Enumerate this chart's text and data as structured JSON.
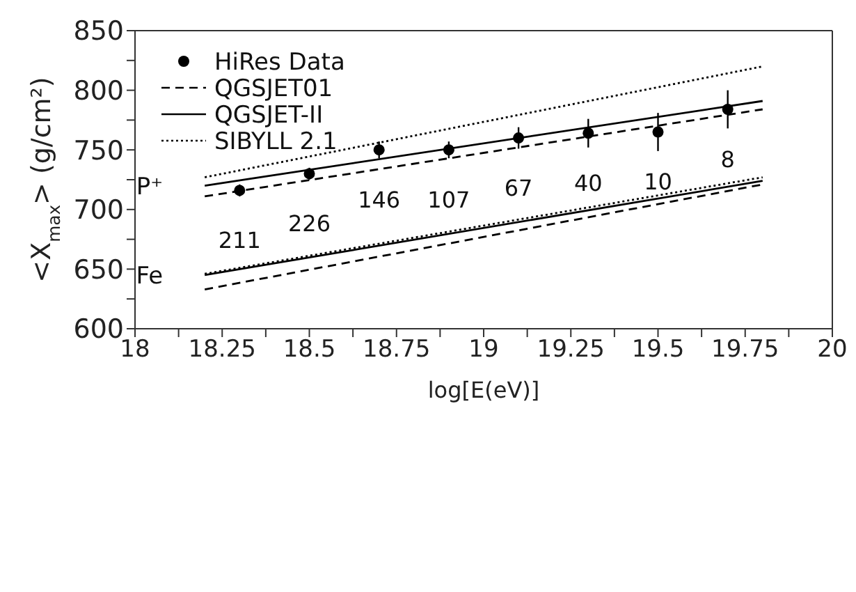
{
  "chart_data": {
    "type": "line",
    "xlabel": "log[E(eV)]",
    "ylabel": "<X$_{max}$> (g/cm²)",
    "xlim": [
      18,
      20
    ],
    "ylim": [
      600,
      850
    ],
    "xticks": [
      18,
      {
        "value": 18.125,
        "label": null
      },
      18.25,
      {
        "value": 18.375,
        "label": null
      },
      18.5,
      {
        "value": 18.625,
        "label": null
      },
      18.75,
      {
        "value": 18.875,
        "label": null
      },
      19,
      {
        "value": 19.125,
        "label": null
      },
      19.25,
      {
        "value": 19.375,
        "label": null
      },
      19.5,
      {
        "value": 19.625,
        "label": null
      },
      19.75,
      {
        "value": 19.875,
        "label": null
      },
      20
    ],
    "yticks": [
      600,
      {
        "value": 625,
        "label": null
      },
      650,
      {
        "value": 675,
        "label": null
      },
      700,
      {
        "value": 725,
        "label": null
      },
      750,
      {
        "value": 775,
        "label": null
      },
      800,
      {
        "value": 825,
        "label": null
      },
      850
    ],
    "grid": false,
    "legend": "top left",
    "series": [
      {
        "name": "HiRes Data",
        "type": "scatter",
        "marker": "circle",
        "color": "#000000",
        "x": [
          18.3,
          18.5,
          18.7,
          18.9,
          19.1,
          19.3,
          19.5,
          19.7
        ],
        "values": [
          716,
          730,
          750,
          750,
          760,
          764,
          765,
          784
        ],
        "errors": [
          5,
          5,
          7,
          7,
          9,
          12,
          16,
          16
        ]
      },
      {
        "name": "QGSJET01",
        "color": "#000000",
        "line_style": "dashed",
        "x": [
          18.2,
          19.8
        ],
        "values": [
          711,
          784
        ]
      },
      {
        "name": "QGSJET-II",
        "color": "#000000",
        "line_style": "solid",
        "x": [
          18.2,
          19.8
        ],
        "values": [
          720,
          791
        ]
      },
      {
        "name": "SIBYLL 2.1",
        "color": "#000000",
        "line_style": "dotted",
        "x": [
          18.2,
          19.8
        ],
        "values": [
          727,
          820
        ]
      },
      {
        "color": "#000000",
        "line_style": "dashed",
        "x": [
          18.2,
          19.8
        ],
        "values": [
          633,
          721
        ]
      },
      {
        "color": "#000000",
        "line_style": "solid",
        "x": [
          18.2,
          19.8
        ],
        "values": [
          645,
          724
        ]
      },
      {
        "color": "#000000",
        "line_style": "dotted",
        "x": [
          18.2,
          19.8
        ],
        "values": [
          646,
          727
        ]
      }
    ],
    "annotations": [
      {
        "text": "211",
        "x": 18.3,
        "y": 716
      },
      {
        "text": "226",
        "x": 18.5,
        "y": 730
      },
      {
        "text": "146",
        "x": 18.7,
        "y": 750
      },
      {
        "text": "107",
        "x": 18.9,
        "y": 750
      },
      {
        "text": "67",
        "x": 19.1,
        "y": 760
      },
      {
        "text": "40",
        "x": 19.3,
        "y": 764
      },
      {
        "text": "10",
        "x": 19.5,
        "y": 765
      },
      {
        "text": "8",
        "x": 19.7,
        "y": 784
      },
      {
        "text": "P⁺",
        "x": 18.2,
        "y": 720
      },
      {
        "text": "Fe",
        "x": 18.2,
        "y": 645
      }
    ]
  }
}
